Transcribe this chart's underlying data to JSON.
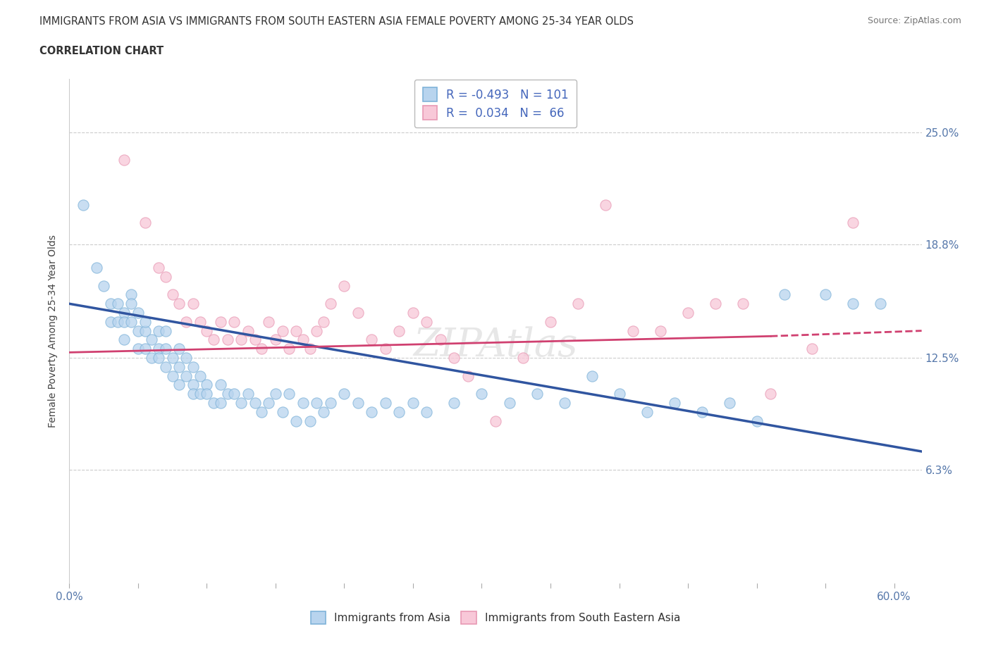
{
  "title_line1": "IMMIGRANTS FROM ASIA VS IMMIGRANTS FROM SOUTH EASTERN ASIA FEMALE POVERTY AMONG 25-34 YEAR OLDS",
  "title_line2": "CORRELATION CHART",
  "source": "Source: ZipAtlas.com",
  "ylabel": "Female Poverty Among 25-34 Year Olds",
  "xlim": [
    0.0,
    0.62
  ],
  "ylim": [
    0.0,
    0.28
  ],
  "ytick_positions": [
    0.063,
    0.125,
    0.188,
    0.25
  ],
  "ytick_labels": [
    "6.3%",
    "12.5%",
    "18.8%",
    "25.0%"
  ],
  "hline_positions": [
    0.063,
    0.125,
    0.188,
    0.25
  ],
  "blue_color": "#b8d4ee",
  "blue_edge": "#7fb3d9",
  "pink_color": "#f8c8d8",
  "pink_edge": "#e899b4",
  "trend_blue": "#3055a0",
  "trend_pink": "#d04070",
  "R_blue": -0.493,
  "N_blue": 101,
  "R_pink": 0.034,
  "N_pink": 66,
  "legend_label_blue": "Immigrants from Asia",
  "legend_label_pink": "Immigrants from South Eastern Asia",
  "watermark": "ZIPAtlas",
  "marker_size": 120,
  "blue_scatter_x": [
    0.01,
    0.02,
    0.025,
    0.03,
    0.03,
    0.035,
    0.035,
    0.04,
    0.04,
    0.04,
    0.045,
    0.045,
    0.045,
    0.05,
    0.05,
    0.05,
    0.055,
    0.055,
    0.055,
    0.06,
    0.06,
    0.065,
    0.065,
    0.065,
    0.07,
    0.07,
    0.07,
    0.075,
    0.075,
    0.08,
    0.08,
    0.08,
    0.085,
    0.085,
    0.09,
    0.09,
    0.09,
    0.095,
    0.095,
    0.1,
    0.1,
    0.105,
    0.11,
    0.11,
    0.115,
    0.12,
    0.125,
    0.13,
    0.135,
    0.14,
    0.145,
    0.15,
    0.155,
    0.16,
    0.165,
    0.17,
    0.175,
    0.18,
    0.185,
    0.19,
    0.2,
    0.21,
    0.22,
    0.23,
    0.24,
    0.25,
    0.26,
    0.28,
    0.3,
    0.32,
    0.34,
    0.36,
    0.38,
    0.4,
    0.42,
    0.44,
    0.46,
    0.48,
    0.5,
    0.52,
    0.55,
    0.57,
    0.59
  ],
  "blue_scatter_y": [
    0.21,
    0.175,
    0.165,
    0.155,
    0.145,
    0.155,
    0.145,
    0.15,
    0.135,
    0.145,
    0.16,
    0.145,
    0.155,
    0.14,
    0.15,
    0.13,
    0.14,
    0.13,
    0.145,
    0.135,
    0.125,
    0.13,
    0.14,
    0.125,
    0.13,
    0.12,
    0.14,
    0.125,
    0.115,
    0.13,
    0.12,
    0.11,
    0.125,
    0.115,
    0.12,
    0.11,
    0.105,
    0.115,
    0.105,
    0.11,
    0.105,
    0.1,
    0.11,
    0.1,
    0.105,
    0.105,
    0.1,
    0.105,
    0.1,
    0.095,
    0.1,
    0.105,
    0.095,
    0.105,
    0.09,
    0.1,
    0.09,
    0.1,
    0.095,
    0.1,
    0.105,
    0.1,
    0.095,
    0.1,
    0.095,
    0.1,
    0.095,
    0.1,
    0.105,
    0.1,
    0.105,
    0.1,
    0.115,
    0.105,
    0.095,
    0.1,
    0.095,
    0.1,
    0.09,
    0.16,
    0.16,
    0.155,
    0.155
  ],
  "pink_scatter_x": [
    0.04,
    0.055,
    0.065,
    0.07,
    0.075,
    0.08,
    0.085,
    0.09,
    0.095,
    0.1,
    0.105,
    0.11,
    0.115,
    0.12,
    0.125,
    0.13,
    0.135,
    0.14,
    0.145,
    0.15,
    0.155,
    0.16,
    0.165,
    0.17,
    0.175,
    0.18,
    0.185,
    0.19,
    0.2,
    0.21,
    0.22,
    0.23,
    0.24,
    0.25,
    0.26,
    0.27,
    0.28,
    0.29,
    0.31,
    0.33,
    0.35,
    0.37,
    0.39,
    0.41,
    0.43,
    0.45,
    0.47,
    0.49,
    0.51,
    0.54,
    0.57
  ],
  "pink_scatter_y": [
    0.235,
    0.2,
    0.175,
    0.17,
    0.16,
    0.155,
    0.145,
    0.155,
    0.145,
    0.14,
    0.135,
    0.145,
    0.135,
    0.145,
    0.135,
    0.14,
    0.135,
    0.13,
    0.145,
    0.135,
    0.14,
    0.13,
    0.14,
    0.135,
    0.13,
    0.14,
    0.145,
    0.155,
    0.165,
    0.15,
    0.135,
    0.13,
    0.14,
    0.15,
    0.145,
    0.135,
    0.125,
    0.115,
    0.09,
    0.125,
    0.145,
    0.155,
    0.21,
    0.14,
    0.14,
    0.15,
    0.155,
    0.155,
    0.105,
    0.13,
    0.2
  ],
  "blue_trend_x0": 0.0,
  "blue_trend_x1": 0.62,
  "blue_trend_y0": 0.155,
  "blue_trend_y1": 0.073,
  "pink_trend_x0": 0.0,
  "pink_trend_x1": 0.51,
  "pink_trend_y0": 0.128,
  "pink_trend_y1": 0.137,
  "pink_trend_dash_x0": 0.51,
  "pink_trend_dash_x1": 0.62,
  "pink_trend_dash_y0": 0.137,
  "pink_trend_dash_y1": 0.14
}
